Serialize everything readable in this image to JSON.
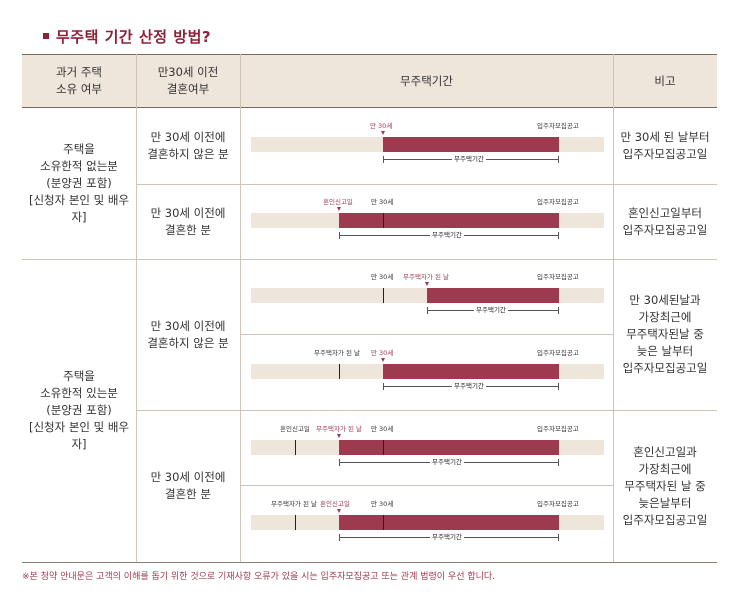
{
  "title": "무주택 기간 산정 방법?",
  "header": {
    "col1": "과거 주택\n소유 여부",
    "col2": "만30세 이전\n결혼여부",
    "col3": "무주택기간",
    "col4": "비고"
  },
  "groups": [
    {
      "ownership": "주택을\n소유한적 없는분\n(분양권 포함)\n[신청자 본인 및 배우자]"
    },
    {
      "ownership": "주택을\n소유한적 있는분\n(분양권 포함)\n[신청자 본인 및 배우자]"
    }
  ],
  "marriage": [
    "만 30세 이전에\n결혼하지 않은 분",
    "만 30세 이전에\n결혼한 분",
    "만 30세 이전에\n결혼하지 않은 분",
    "만 30세 이전에\n결혼한 분"
  ],
  "remarks": [
    "만 30세 된 날부터\n입주자모집공고일",
    "혼인신고일부터\n입주자모집공고일",
    "만 30세된날과\n가장최근에\n무주택자된날 중\n늦은 날부터\n입주자모집공고일",
    "혼인신고일과\n가장최근에\n무주택자된 날 중\n늦은날부터\n입주자모집공고일"
  ],
  "timelines": [
    {
      "period": "무주택기간",
      "labels": [
        "만 30세",
        "입주자모집공고"
      ]
    },
    {
      "period": "무주택기간",
      "labels": [
        "혼인신고일",
        "만 30세",
        "입주자모집공고"
      ]
    },
    {
      "period": "무주택기간",
      "labels": [
        "만 30세",
        "무주택자가 된 날",
        "입주자모집공고"
      ]
    },
    {
      "period": "무주택기간",
      "labels": [
        "무주택자가 된 날",
        "만 30세",
        "입주자모집공고"
      ]
    },
    {
      "period": "무주택기간",
      "labels": [
        "혼인신고일",
        "무주택자가 된 날",
        "만 30세",
        "입주자모집공고"
      ]
    },
    {
      "period": "무주택기간",
      "labels": [
        "무주택자가 된 날",
        "혼인신고일",
        "만 30세",
        "입주자모집공고"
      ]
    }
  ],
  "footnote": "※본 청약 안내문은 고객의 이해를 돕기 위한 것으로 기재사항 오류가 있을 시는 입주자모집공고 또는 관계 법령이 우선 합니다.",
  "colors": {
    "accent": "#9e3a50",
    "header_bg": "#efe6db",
    "title": "#8b2338"
  }
}
